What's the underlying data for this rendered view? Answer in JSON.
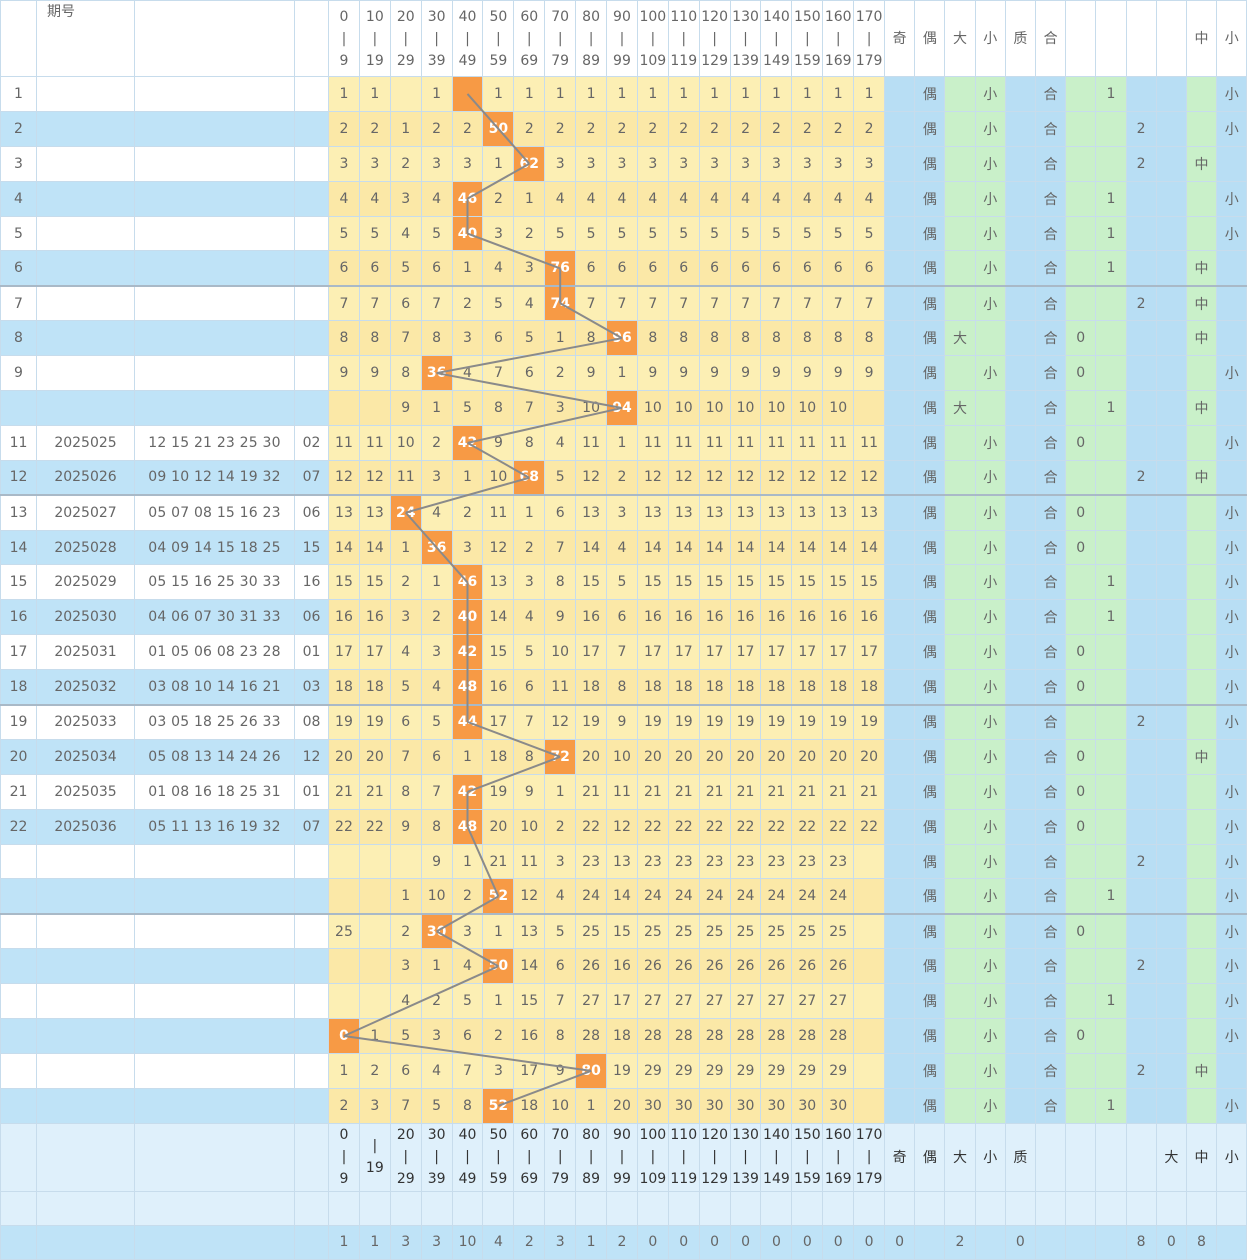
{
  "header": {
    "issue_label": "期号",
    "ranges": [
      [
        "0",
        "9"
      ],
      [
        "10",
        "19"
      ],
      [
        "20",
        "29"
      ],
      [
        "30",
        "39"
      ],
      [
        "40",
        "49"
      ],
      [
        "50",
        "59"
      ],
      [
        "60",
        "69"
      ],
      [
        "70",
        "79"
      ],
      [
        "80",
        "89"
      ],
      [
        "90",
        "99"
      ],
      [
        "100",
        "109"
      ],
      [
        "110",
        "119"
      ],
      [
        "120",
        "129"
      ],
      [
        "130",
        "139"
      ],
      [
        "140",
        "149"
      ],
      [
        "150",
        "159"
      ],
      [
        "160",
        "169"
      ],
      [
        "170",
        "179"
      ]
    ],
    "attrs": [
      "奇",
      "偶",
      "大",
      "小",
      "质",
      "合",
      "",
      "",
      "",
      "",
      "中",
      "小"
    ]
  },
  "rows": [
    {
      "idx": "1",
      "issue": "",
      "nums": "",
      "blue": "",
      "hit": 4,
      "hitval": "",
      "vals": [
        "1",
        "1",
        "",
        "1",
        "",
        "1",
        "1",
        "1",
        "1",
        "1",
        "1",
        "1",
        "1",
        "1",
        "1",
        "1",
        "1",
        "1"
      ],
      "a": [
        "",
        "偶",
        "",
        "小",
        "",
        "合",
        "",
        "1",
        "",
        "",
        "",
        "小"
      ]
    },
    {
      "idx": "2",
      "issue": "",
      "nums": "",
      "blue": "",
      "hit": 5,
      "hitval": "50",
      "vals": [
        "2",
        "2",
        "1",
        "2",
        "2",
        "",
        "2",
        "2",
        "2",
        "2",
        "2",
        "2",
        "2",
        "2",
        "2",
        "2",
        "2",
        "2"
      ],
      "a": [
        "",
        "偶",
        "",
        "小",
        "",
        "合",
        "",
        "",
        "2",
        "",
        "",
        "小"
      ]
    },
    {
      "idx": "3",
      "issue": "",
      "nums": "",
      "blue": "",
      "hit": 6,
      "hitval": "62",
      "vals": [
        "3",
        "3",
        "2",
        "3",
        "3",
        "1",
        "",
        "3",
        "3",
        "3",
        "3",
        "3",
        "3",
        "3",
        "3",
        "3",
        "3",
        "3"
      ],
      "a": [
        "",
        "偶",
        "",
        "小",
        "",
        "合",
        "",
        "",
        "2",
        "",
        "中",
        ""
      ]
    },
    {
      "idx": "4",
      "issue": "",
      "nums": "",
      "blue": "",
      "hit": 4,
      "hitval": "46",
      "vals": [
        "4",
        "4",
        "3",
        "4",
        "",
        "2",
        "1",
        "4",
        "4",
        "4",
        "4",
        "4",
        "4",
        "4",
        "4",
        "4",
        "4",
        "4"
      ],
      "a": [
        "",
        "偶",
        "",
        "小",
        "",
        "合",
        "",
        "1",
        "",
        "",
        "",
        "小"
      ]
    },
    {
      "idx": "5",
      "issue": "",
      "nums": "",
      "blue": "",
      "hit": 4,
      "hitval": "40",
      "vals": [
        "5",
        "5",
        "4",
        "5",
        "",
        "3",
        "2",
        "5",
        "5",
        "5",
        "5",
        "5",
        "5",
        "5",
        "5",
        "5",
        "5",
        "5"
      ],
      "a": [
        "",
        "偶",
        "",
        "小",
        "",
        "合",
        "",
        "1",
        "",
        "",
        "",
        "小"
      ]
    },
    {
      "idx": "6",
      "issue": "",
      "nums": "",
      "blue": "",
      "hit": 7,
      "hitval": "76",
      "vals": [
        "6",
        "6",
        "5",
        "6",
        "1",
        "4",
        "3",
        "",
        "6",
        "6",
        "6",
        "6",
        "6",
        "6",
        "6",
        "6",
        "6",
        "6"
      ],
      "a": [
        "",
        "偶",
        "",
        "小",
        "",
        "合",
        "",
        "1",
        "",
        "",
        "中",
        ""
      ]
    },
    {
      "idx": "7",
      "issue": "",
      "nums": "",
      "blue": "",
      "hit": 7,
      "hitval": "74",
      "vals": [
        "7",
        "7",
        "6",
        "7",
        "2",
        "5",
        "4",
        "",
        "7",
        "7",
        "7",
        "7",
        "7",
        "7",
        "7",
        "7",
        "7",
        "7"
      ],
      "a": [
        "",
        "偶",
        "",
        "小",
        "",
        "合",
        "",
        "",
        "2",
        "",
        "中",
        ""
      ]
    },
    {
      "idx": "8",
      "issue": "",
      "nums": "",
      "blue": "",
      "hit": 9,
      "hitval": "96",
      "vals": [
        "8",
        "8",
        "7",
        "8",
        "3",
        "6",
        "5",
        "1",
        "8",
        "",
        "8",
        "8",
        "8",
        "8",
        "8",
        "8",
        "8",
        "8"
      ],
      "a": [
        "",
        "偶",
        "大",
        "",
        "",
        "合",
        "0",
        "",
        "",
        "",
        "中",
        ""
      ]
    },
    {
      "idx": "9",
      "issue": "",
      "nums": "",
      "blue": "",
      "hit": 3,
      "hitval": "36",
      "vals": [
        "9",
        "9",
        "8",
        "",
        "4",
        "7",
        "6",
        "2",
        "9",
        "1",
        "9",
        "9",
        "9",
        "9",
        "9",
        "9",
        "9",
        "9"
      ],
      "a": [
        "",
        "偶",
        "",
        "小",
        "",
        "合",
        "0",
        "",
        "",
        "",
        "",
        "小"
      ]
    },
    {
      "idx": "",
      "issue": "",
      "nums": "",
      "blue": "",
      "hit": 9,
      "hitval": "94",
      "vals": [
        "",
        "",
        "9",
        "1",
        "5",
        "8",
        "7",
        "3",
        "10",
        "",
        "10",
        "10",
        "10",
        "10",
        "10",
        "10",
        "10",
        ""
      ],
      "a": [
        "",
        "偶",
        "大",
        "",
        "",
        "合",
        "",
        "1",
        "",
        "",
        "中",
        ""
      ]
    },
    {
      "idx": "11",
      "issue": "2025025",
      "nums": "12 15 21 23 25 30",
      "blue": "02",
      "hit": 4,
      "hitval": "42",
      "vals": [
        "11",
        "11",
        "10",
        "2",
        "",
        "9",
        "8",
        "4",
        "11",
        "1",
        "11",
        "11",
        "11",
        "11",
        "11",
        "11",
        "11",
        "11"
      ],
      "a": [
        "",
        "偶",
        "",
        "小",
        "",
        "合",
        "0",
        "",
        "",
        "",
        "",
        "小"
      ]
    },
    {
      "idx": "12",
      "issue": "2025026",
      "nums": "09 10 12 14 19 32",
      "blue": "07",
      "hit": 6,
      "hitval": "68",
      "vals": [
        "12",
        "12",
        "11",
        "3",
        "1",
        "10",
        "",
        "5",
        "12",
        "2",
        "12",
        "12",
        "12",
        "12",
        "12",
        "12",
        "12",
        "12"
      ],
      "a": [
        "",
        "偶",
        "",
        "小",
        "",
        "合",
        "",
        "",
        "2",
        "",
        "中",
        ""
      ]
    },
    {
      "idx": "13",
      "issue": "2025027",
      "nums": "05 07 08 15 16 23",
      "blue": "06",
      "hit": 2,
      "hitval": "24",
      "vals": [
        "13",
        "13",
        "",
        "4",
        "2",
        "11",
        "1",
        "6",
        "13",
        "3",
        "13",
        "13",
        "13",
        "13",
        "13",
        "13",
        "13",
        "13"
      ],
      "a": [
        "",
        "偶",
        "",
        "小",
        "",
        "合",
        "0",
        "",
        "",
        "",
        "",
        "小"
      ]
    },
    {
      "idx": "14",
      "issue": "2025028",
      "nums": "04 09 14 15 18 25",
      "blue": "15",
      "hit": 3,
      "hitval": "36",
      "vals": [
        "14",
        "14",
        "1",
        "",
        "3",
        "12",
        "2",
        "7",
        "14",
        "4",
        "14",
        "14",
        "14",
        "14",
        "14",
        "14",
        "14",
        "14"
      ],
      "a": [
        "",
        "偶",
        "",
        "小",
        "",
        "合",
        "0",
        "",
        "",
        "",
        "",
        "小"
      ]
    },
    {
      "idx": "15",
      "issue": "2025029",
      "nums": "05 15 16 25 30 33",
      "blue": "16",
      "hit": 4,
      "hitval": "46",
      "vals": [
        "15",
        "15",
        "2",
        "1",
        "",
        "13",
        "3",
        "8",
        "15",
        "5",
        "15",
        "15",
        "15",
        "15",
        "15",
        "15",
        "15",
        "15"
      ],
      "a": [
        "",
        "偶",
        "",
        "小",
        "",
        "合",
        "",
        "1",
        "",
        "",
        "",
        "小"
      ]
    },
    {
      "idx": "16",
      "issue": "2025030",
      "nums": "04 06 07 30 31 33",
      "blue": "06",
      "hit": 4,
      "hitval": "40",
      "vals": [
        "16",
        "16",
        "3",
        "2",
        "",
        "14",
        "4",
        "9",
        "16",
        "6",
        "16",
        "16",
        "16",
        "16",
        "16",
        "16",
        "16",
        "16"
      ],
      "a": [
        "",
        "偶",
        "",
        "小",
        "",
        "合",
        "",
        "1",
        "",
        "",
        "",
        "小"
      ]
    },
    {
      "idx": "17",
      "issue": "2025031",
      "nums": "01 05 06 08 23 28",
      "blue": "01",
      "hit": 4,
      "hitval": "42",
      "vals": [
        "17",
        "17",
        "4",
        "3",
        "",
        "15",
        "5",
        "10",
        "17",
        "7",
        "17",
        "17",
        "17",
        "17",
        "17",
        "17",
        "17",
        "17"
      ],
      "a": [
        "",
        "偶",
        "",
        "小",
        "",
        "合",
        "0",
        "",
        "",
        "",
        "",
        "小"
      ]
    },
    {
      "idx": "18",
      "issue": "2025032",
      "nums": "03 08 10 14 16 21",
      "blue": "03",
      "hit": 4,
      "hitval": "48",
      "vals": [
        "18",
        "18",
        "5",
        "4",
        "",
        "16",
        "6",
        "11",
        "18",
        "8",
        "18",
        "18",
        "18",
        "18",
        "18",
        "18",
        "18",
        "18"
      ],
      "a": [
        "",
        "偶",
        "",
        "小",
        "",
        "合",
        "0",
        "",
        "",
        "",
        "",
        "小"
      ]
    },
    {
      "idx": "19",
      "issue": "2025033",
      "nums": "03 05 18 25 26 33",
      "blue": "08",
      "hit": 4,
      "hitval": "44",
      "vals": [
        "19",
        "19",
        "6",
        "5",
        "",
        "17",
        "7",
        "12",
        "19",
        "9",
        "19",
        "19",
        "19",
        "19",
        "19",
        "19",
        "19",
        "19"
      ],
      "a": [
        "",
        "偶",
        "",
        "小",
        "",
        "合",
        "",
        "",
        "2",
        "",
        "",
        "小"
      ]
    },
    {
      "idx": "20",
      "issue": "2025034",
      "nums": "05 08 13 14 24 26",
      "blue": "12",
      "hit": 7,
      "hitval": "72",
      "vals": [
        "20",
        "20",
        "7",
        "6",
        "1",
        "18",
        "8",
        "",
        "20",
        "10",
        "20",
        "20",
        "20",
        "20",
        "20",
        "20",
        "20",
        "20"
      ],
      "a": [
        "",
        "偶",
        "",
        "小",
        "",
        "合",
        "0",
        "",
        "",
        "",
        "中",
        ""
      ]
    },
    {
      "idx": "21",
      "issue": "2025035",
      "nums": "01 08 16 18 25 31",
      "blue": "01",
      "hit": 4,
      "hitval": "42",
      "vals": [
        "21",
        "21",
        "8",
        "7",
        "",
        "19",
        "9",
        "1",
        "21",
        "11",
        "21",
        "21",
        "21",
        "21",
        "21",
        "21",
        "21",
        "21"
      ],
      "a": [
        "",
        "偶",
        "",
        "小",
        "",
        "合",
        "0",
        "",
        "",
        "",
        "",
        "小"
      ]
    },
    {
      "idx": "22",
      "issue": "2025036",
      "nums": "05 11 13 16 19 32",
      "blue": "07",
      "hit": 4,
      "hitval": "48",
      "vals": [
        "22",
        "22",
        "9",
        "8",
        "",
        "20",
        "10",
        "2",
        "22",
        "12",
        "22",
        "22",
        "22",
        "22",
        "22",
        "22",
        "22",
        "22"
      ],
      "a": [
        "",
        "偶",
        "",
        "小",
        "",
        "合",
        "0",
        "",
        "",
        "",
        "",
        "小"
      ]
    },
    {
      "idx": "",
      "issue": "",
      "nums": "",
      "blue": "",
      "hit": -1,
      "hitval": "",
      "vals": [
        "",
        "",
        "",
        "9",
        "1",
        "21",
        "11",
        "3",
        "23",
        "13",
        "23",
        "23",
        "23",
        "23",
        "23",
        "23",
        "23",
        ""
      ],
      "a": [
        "",
        "偶",
        "",
        "小",
        "",
        "合",
        "",
        "",
        "2",
        "",
        "",
        "小"
      ]
    },
    {
      "idx": "",
      "issue": "",
      "nums": "",
      "blue": "",
      "hit": 5,
      "hitval": "52",
      "vals": [
        "",
        "",
        "1",
        "10",
        "2",
        "",
        "12",
        "4",
        "24",
        "14",
        "24",
        "24",
        "24",
        "24",
        "24",
        "24",
        "24",
        ""
      ],
      "a": [
        "",
        "偶",
        "",
        "小",
        "",
        "合",
        "",
        "1",
        "",
        "",
        "",
        "小"
      ]
    },
    {
      "idx": "",
      "issue": "",
      "nums": "",
      "blue": "",
      "hit": 3,
      "hitval": "30",
      "vals": [
        "25",
        "",
        "2",
        "",
        "3",
        "1",
        "13",
        "5",
        "25",
        "15",
        "25",
        "25",
        "25",
        "25",
        "25",
        "25",
        "25",
        ""
      ],
      "a": [
        "",
        "偶",
        "",
        "小",
        "",
        "合",
        "0",
        "",
        "",
        "",
        "",
        "小"
      ]
    },
    {
      "idx": "",
      "issue": "",
      "nums": "",
      "blue": "",
      "hit": 5,
      "hitval": "50",
      "vals": [
        "",
        "",
        "3",
        "1",
        "4",
        "",
        "14",
        "6",
        "26",
        "16",
        "26",
        "26",
        "26",
        "26",
        "26",
        "26",
        "26",
        ""
      ],
      "a": [
        "",
        "偶",
        "",
        "小",
        "",
        "合",
        "",
        "",
        "2",
        "",
        "",
        "小"
      ]
    },
    {
      "idx": "",
      "issue": "",
      "nums": "",
      "blue": "",
      "hit": -1,
      "hitval": "",
      "vals": [
        "",
        "",
        "4",
        "2",
        "5",
        "1",
        "15",
        "7",
        "27",
        "17",
        "27",
        "27",
        "27",
        "27",
        "27",
        "27",
        "27",
        ""
      ],
      "a": [
        "",
        "偶",
        "",
        "小",
        "",
        "合",
        "",
        "1",
        "",
        "",
        "",
        "小"
      ]
    },
    {
      "idx": "",
      "issue": "",
      "nums": "",
      "blue": "",
      "hit": 0,
      "hitval": "0",
      "vals": [
        "",
        "1",
        "5",
        "3",
        "6",
        "2",
        "16",
        "8",
        "28",
        "18",
        "28",
        "28",
        "28",
        "28",
        "28",
        "28",
        "28",
        ""
      ],
      "a": [
        "",
        "偶",
        "",
        "小",
        "",
        "合",
        "0",
        "",
        "",
        "",
        "",
        "小"
      ]
    },
    {
      "idx": "",
      "issue": "",
      "nums": "",
      "blue": "",
      "hit": 8,
      "hitval": "80",
      "vals": [
        "1",
        "2",
        "6",
        "4",
        "7",
        "3",
        "17",
        "9",
        "",
        "19",
        "29",
        "29",
        "29",
        "29",
        "29",
        "29",
        "29",
        ""
      ],
      "a": [
        "",
        "偶",
        "",
        "小",
        "",
        "合",
        "",
        "",
        "2",
        "",
        "中",
        ""
      ]
    },
    {
      "idx": "",
      "issue": "",
      "nums": "",
      "blue": "",
      "hit": 5,
      "hitval": "52",
      "vals": [
        "2",
        "3",
        "7",
        "5",
        "8",
        "",
        "18",
        "10",
        "1",
        "20",
        "30",
        "30",
        "30",
        "30",
        "30",
        "30",
        "30",
        ""
      ],
      "a": [
        "",
        "偶",
        "",
        "小",
        "",
        "合",
        "",
        "1",
        "",
        "",
        "",
        "小"
      ]
    }
  ],
  "footer_ranges": [
    [
      "0",
      "9"
    ],
    [
      "",
      "19"
    ],
    [
      "20",
      "29"
    ],
    [
      "30",
      "39"
    ],
    [
      "40",
      "49"
    ],
    [
      "50",
      "59"
    ],
    [
      "60",
      "69"
    ],
    [
      "70",
      "79"
    ],
    [
      "80",
      "89"
    ],
    [
      "90",
      "99"
    ],
    [
      "100",
      "109"
    ],
    [
      "110",
      "119"
    ],
    [
      "120",
      "129"
    ],
    [
      "130",
      "139"
    ],
    [
      "140",
      "149"
    ],
    [
      "150",
      "159"
    ],
    [
      "160",
      "169"
    ],
    [
      "170",
      "179"
    ]
  ],
  "footer_attrs": [
    "奇",
    "偶",
    "大",
    "小",
    "质",
    "",
    "",
    "",
    "",
    "大",
    "中",
    "小"
  ],
  "totals": [
    "1",
    "1",
    "3",
    "3",
    "10",
    "4",
    "2",
    "3",
    "1",
    "2",
    "0",
    "0",
    "0",
    "0",
    "0",
    "0",
    "0",
    "0"
  ],
  "totals_attrs": [
    "0",
    "",
    "2",
    "",
    "0",
    "",
    "",
    "",
    "8",
    "0",
    "8",
    ""
  ],
  "colors": {
    "hit": "#f79a45",
    "line": "#8a8a8a",
    "blue_bg": "#bfe3f7",
    "yellow_bg": "#fcefb4",
    "green_bg": "#c9f0c9"
  }
}
